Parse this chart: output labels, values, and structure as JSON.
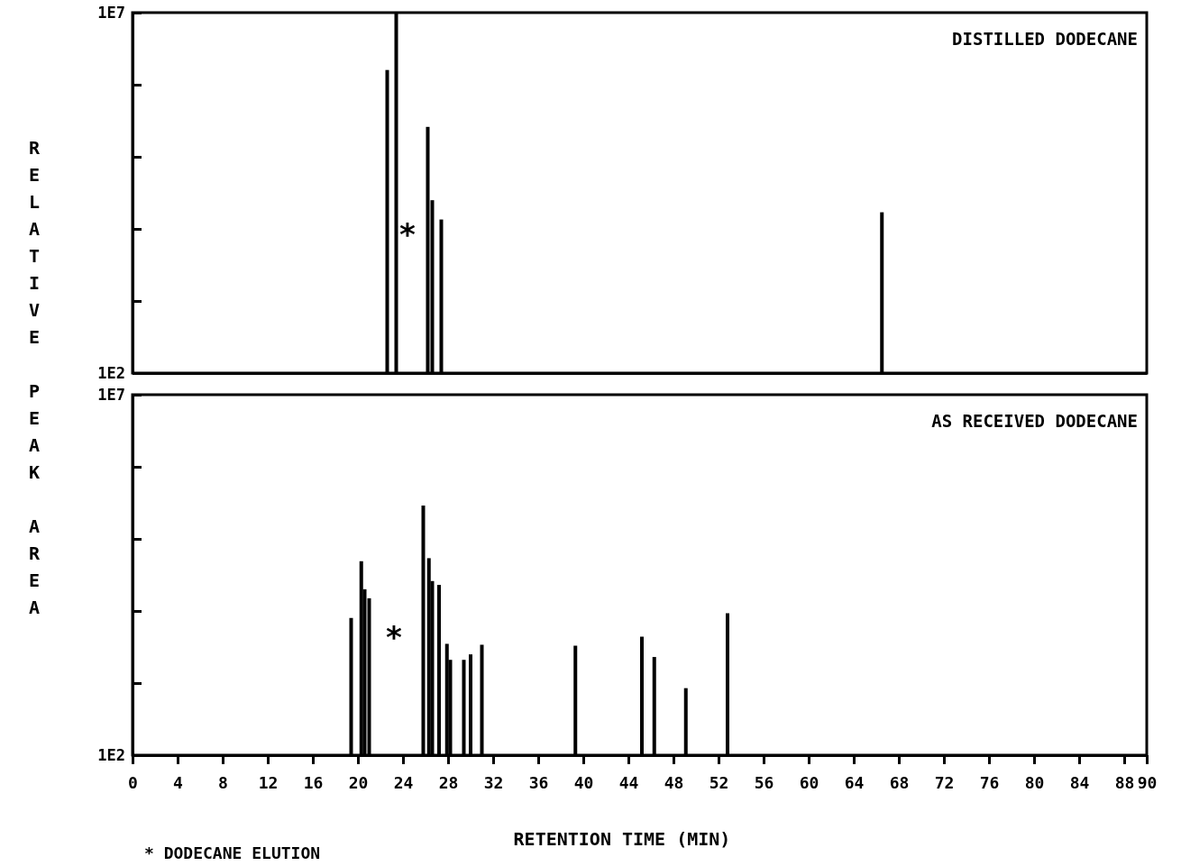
{
  "chart_data": [
    {
      "type": "bar",
      "title": "DISTILLED DODECANE",
      "ylabel": "RELATIVE PEAK AREA",
      "log": true,
      "tick_labels": "y",
      "color": "#000000",
      "x": [
        22.6,
        23.4,
        26.2,
        26.6,
        27.4,
        66.5
      ],
      "values": [
        1600000,
        10000000,
        260000,
        25000,
        13500,
        17000
      ],
      "xlim": [
        0,
        90
      ],
      "xticks": [
        0,
        4,
        8,
        12,
        16,
        20,
        24,
        28,
        32,
        36,
        40,
        44,
        48,
        52,
        56,
        60,
        64,
        68,
        72,
        76,
        80,
        84,
        88,
        90
      ],
      "ylim": [
        100,
        10000000
      ],
      "yticks": [
        {
          "value": 100,
          "label": "1E2"
        },
        {
          "value": 1000,
          "label": null
        },
        {
          "value": 10000,
          "label": null
        },
        {
          "value": 100000,
          "label": null
        },
        {
          "value": 1000000,
          "label": null
        },
        {
          "value": 10000000,
          "label": "1E7"
        }
      ],
      "annotations": [
        "*"
      ]
    },
    {
      "type": "bar",
      "title": "AS RECEIVED DODECANE",
      "xlabel": "RETENTION TIME (MIN)",
      "log": true,
      "color": "#000000",
      "x": [
        19.4,
        20.3,
        20.6,
        21.0,
        25.8,
        26.3,
        26.6,
        27.2,
        27.9,
        28.2,
        29.4,
        30.0,
        31.0,
        39.3,
        45.2,
        46.3,
        49.1,
        52.8
      ],
      "values": [
        8000,
        49000,
        20000,
        15000,
        290000,
        54000,
        26000,
        23000,
        3500,
        2100,
        2100,
        2500,
        3400,
        3300,
        4400,
        2300,
        850,
        9300
      ],
      "xlim": [
        0,
        90
      ],
      "xticks": [
        0,
        4,
        8,
        12,
        16,
        20,
        24,
        28,
        32,
        36,
        40,
        44,
        48,
        52,
        56,
        60,
        64,
        68,
        72,
        76,
        80,
        84,
        88,
        90
      ],
      "ylim": [
        100,
        10000000
      ],
      "yticks": [
        {
          "value": 100,
          "label": "1E2"
        },
        {
          "value": 1000,
          "label": null
        },
        {
          "value": 10000,
          "label": null
        },
        {
          "value": 100000,
          "label": null
        },
        {
          "value": 1000000,
          "label": null
        },
        {
          "value": 10000000,
          "label": "1E7"
        }
      ],
      "annotations": [
        "*",
        "* DODECANE ELUTION"
      ]
    }
  ]
}
